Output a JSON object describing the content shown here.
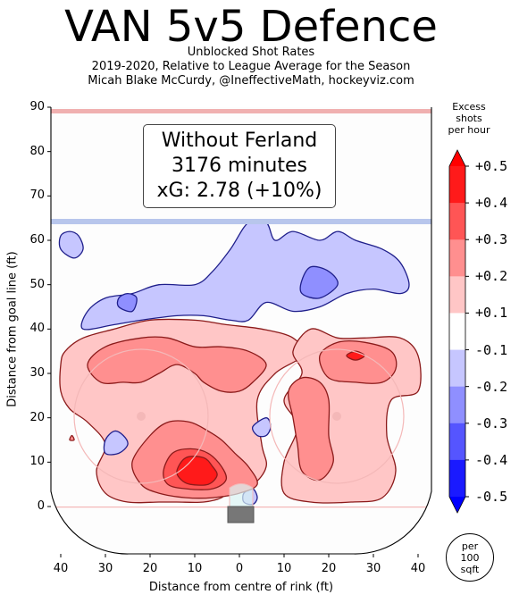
{
  "title": "VAN 5v5 Defence",
  "subtitle_lines": [
    "Unblocked Shot Rates",
    "2019-2020, Relative to League Average for the Season",
    "Micah Blake McCurdy, @IneffectiveMath, hockeyviz.com"
  ],
  "legend": {
    "line1": "Without Ferland",
    "line2": "3176 minutes",
    "line3": "xG: 2.78 (+10%)"
  },
  "colorbar": {
    "title_lines": [
      "Excess",
      "shots",
      "per hour"
    ],
    "ticks": [
      "+0.5",
      "+0.4",
      "+0.3",
      "+0.2",
      "+0.1",
      "-0.1",
      "-0.2",
      "-0.3",
      "-0.4",
      "-0.5"
    ],
    "colors": [
      "#ff1a1a",
      "#ff5555",
      "#ff8f8f",
      "#ffc6c6",
      "#ffffff",
      "#c6c6ff",
      "#8f8fff",
      "#5555ff",
      "#1a1aff"
    ],
    "top_color": "#ff0000",
    "bottom_color": "#0000ff",
    "unit_lines": [
      "per",
      "100",
      "sqft"
    ]
  },
  "chart_data": {
    "type": "heatmap",
    "title": "VAN 5v5 Defence",
    "xlabel": "Distance from centre of rink (ft)",
    "ylabel": "Distance from goal line (ft)",
    "xlim": [
      42,
      -42
    ],
    "ylim": [
      -11,
      90
    ],
    "xticks": [
      40,
      30,
      20,
      10,
      0,
      10,
      20,
      30,
      40
    ],
    "yticks": [
      0,
      10,
      20,
      30,
      40,
      50,
      60,
      70,
      80,
      90
    ],
    "colorbar_range": [
      -0.5,
      0.5
    ],
    "contour_levels": [
      -0.5,
      -0.4,
      -0.3,
      -0.2,
      -0.1,
      0.1,
      0.2,
      0.3,
      0.4,
      0.5
    ],
    "regions": [
      {
        "name": "red-level-1-left",
        "level": 0.1,
        "points": [
          [
            39,
            35
          ],
          [
            35,
            38
          ],
          [
            28,
            40
          ],
          [
            20,
            42
          ],
          [
            10,
            42
          ],
          [
            3,
            41
          ],
          [
            -5,
            40
          ],
          [
            -12,
            38
          ],
          [
            -14,
            34
          ],
          [
            -8,
            30
          ],
          [
            -4,
            24
          ],
          [
            -5,
            14
          ],
          [
            -6,
            9
          ],
          [
            -3,
            5
          ],
          [
            2,
            4
          ],
          [
            4,
            2
          ],
          [
            8,
            1
          ],
          [
            14,
            1
          ],
          [
            18,
            1
          ],
          [
            25,
            1
          ],
          [
            30,
            3
          ],
          [
            32,
            8
          ],
          [
            30,
            14
          ],
          [
            34,
            19
          ],
          [
            38,
            22
          ],
          [
            40,
            26
          ],
          [
            40,
            32
          ]
        ]
      },
      {
        "name": "red-level-1-right",
        "level": 0.1,
        "points": [
          [
            -12,
            35
          ],
          [
            -16,
            40
          ],
          [
            -22,
            38
          ],
          [
            -28,
            38
          ],
          [
            -36,
            38
          ],
          [
            -40,
            34
          ],
          [
            -40,
            26
          ],
          [
            -34,
            24
          ],
          [
            -33,
            16
          ],
          [
            -35,
            8
          ],
          [
            -32,
            2
          ],
          [
            -25,
            1
          ],
          [
            -16,
            1
          ],
          [
            -10,
            3
          ],
          [
            -10,
            10
          ],
          [
            -13,
            18
          ],
          [
            -10,
            24
          ],
          [
            -14,
            30
          ]
        ]
      },
      {
        "name": "red-level-2-upper-left",
        "level": 0.2,
        "points": [
          [
            34,
            32
          ],
          [
            30,
            36
          ],
          [
            22,
            38
          ],
          [
            16,
            38
          ],
          [
            10,
            36
          ],
          [
            4,
            36
          ],
          [
            -2,
            35
          ],
          [
            -6,
            32
          ],
          [
            -3,
            28
          ],
          [
            0,
            26
          ],
          [
            4,
            26
          ],
          [
            8,
            28
          ],
          [
            10,
            30
          ],
          [
            14,
            32
          ],
          [
            18,
            30
          ],
          [
            22,
            28
          ],
          [
            26,
            28
          ],
          [
            31,
            28
          ]
        ]
      },
      {
        "name": "red-level-2-lower-left",
        "level": 0.2,
        "points": [
          [
            20,
            16
          ],
          [
            16,
            19
          ],
          [
            11,
            19
          ],
          [
            7,
            17
          ],
          [
            4,
            15
          ],
          [
            1,
            12
          ],
          [
            -2,
            9
          ],
          [
            -4,
            5
          ],
          [
            0,
            3
          ],
          [
            6,
            2
          ],
          [
            12,
            2
          ],
          [
            18,
            3
          ],
          [
            22,
            5
          ],
          [
            24,
            10
          ]
        ]
      },
      {
        "name": "red-level-2-right-upper",
        "level": 0.2,
        "points": [
          [
            -18,
            34
          ],
          [
            -22,
            37
          ],
          [
            -28,
            37
          ],
          [
            -34,
            35
          ],
          [
            -35,
            31
          ],
          [
            -32,
            28
          ],
          [
            -26,
            28
          ],
          [
            -20,
            29
          ]
        ]
      },
      {
        "name": "red-level-2-right-lower",
        "level": 0.2,
        "points": [
          [
            -12,
            20
          ],
          [
            -11,
            26
          ],
          [
            -14,
            29
          ],
          [
            -18,
            28
          ],
          [
            -20,
            24
          ],
          [
            -20,
            16
          ],
          [
            -21,
            10
          ],
          [
            -18,
            6
          ],
          [
            -14,
            8
          ],
          [
            -13,
            14
          ]
        ]
      },
      {
        "name": "red-level-3-left-lower",
        "level": 0.3,
        "points": [
          [
            17,
            8
          ],
          [
            15,
            12
          ],
          [
            11,
            13
          ],
          [
            7,
            12
          ],
          [
            4,
            9
          ],
          [
            3,
            6
          ],
          [
            6,
            4
          ],
          [
            12,
            4
          ],
          [
            16,
            5
          ]
        ]
      },
      {
        "name": "red-level-4-left-lower",
        "level": 0.4,
        "points": [
          [
            14,
            8
          ],
          [
            12,
            11
          ],
          [
            8,
            11
          ],
          [
            6,
            9
          ],
          [
            5,
            7
          ],
          [
            7,
            5
          ],
          [
            11,
            5
          ],
          [
            13,
            6
          ]
        ]
      },
      {
        "name": "red-level-4-right",
        "level": 0.4,
        "points": [
          [
            -24,
            34
          ],
          [
            -26,
            35
          ],
          [
            -28,
            34
          ],
          [
            -26,
            33
          ]
        ]
      },
      {
        "name": "red-spot-far-left",
        "level": 0.2,
        "points": [
          [
            38,
            15
          ],
          [
            37.5,
            16
          ],
          [
            37,
            15
          ]
        ]
      },
      {
        "name": "blue-level-1-upper",
        "level": -0.1,
        "points": [
          [
            35,
            40
          ],
          [
            34,
            44
          ],
          [
            30,
            47
          ],
          [
            24,
            48
          ],
          [
            18,
            50
          ],
          [
            10,
            50
          ],
          [
            6,
            53
          ],
          [
            2,
            58
          ],
          [
            -2,
            64
          ],
          [
            -6,
            64
          ],
          [
            -8,
            60
          ],
          [
            -12,
            62
          ],
          [
            -18,
            60
          ],
          [
            -22,
            62
          ],
          [
            -26,
            60
          ],
          [
            -32,
            58
          ],
          [
            -36,
            55
          ],
          [
            -38,
            50
          ],
          [
            -36,
            48
          ],
          [
            -30,
            49
          ],
          [
            -24,
            48
          ],
          [
            -18,
            45
          ],
          [
            -12,
            44
          ],
          [
            -6,
            46
          ],
          [
            -2,
            42
          ],
          [
            2,
            42
          ],
          [
            8,
            43
          ],
          [
            14,
            43
          ],
          [
            22,
            42
          ],
          [
            28,
            41
          ]
        ]
      },
      {
        "name": "blue-level-2-upper-right",
        "level": -0.2,
        "points": [
          [
            -14,
            48
          ],
          [
            -18,
            47
          ],
          [
            -22,
            50
          ],
          [
            -20,
            53
          ],
          [
            -16,
            54
          ],
          [
            -14,
            51
          ]
        ]
      },
      {
        "name": "blue-level-2-small-left",
        "level": -0.2,
        "points": [
          [
            27,
            45
          ],
          [
            24,
            44
          ],
          [
            23,
            47
          ],
          [
            25,
            48
          ],
          [
            27,
            47
          ]
        ]
      },
      {
        "name": "blue-spot-far-left-upper",
        "level": -0.1,
        "points": [
          [
            40,
            58
          ],
          [
            37,
            56
          ],
          [
            35,
            58
          ],
          [
            36,
            61
          ],
          [
            38,
            62
          ],
          [
            40,
            61
          ]
        ]
      },
      {
        "name": "blue-spot-left-mid",
        "level": -0.1,
        "points": [
          [
            30,
            12
          ],
          [
            27,
            12
          ],
          [
            25,
            14
          ],
          [
            26,
            16
          ],
          [
            28,
            17
          ],
          [
            30,
            15
          ]
        ]
      },
      {
        "name": "blue-spot-right-mid",
        "level": -0.1,
        "points": [
          [
            -3,
            18
          ],
          [
            -6,
            20
          ],
          [
            -7,
            18
          ],
          [
            -6,
            16
          ],
          [
            -4,
            16
          ]
        ]
      },
      {
        "name": "blue-spot-crease",
        "level": -0.1,
        "points": [
          [
            -1,
            1
          ],
          [
            -1,
            3
          ],
          [
            -3,
            4
          ],
          [
            -4,
            2
          ],
          [
            -3,
            0.5
          ]
        ]
      }
    ]
  }
}
